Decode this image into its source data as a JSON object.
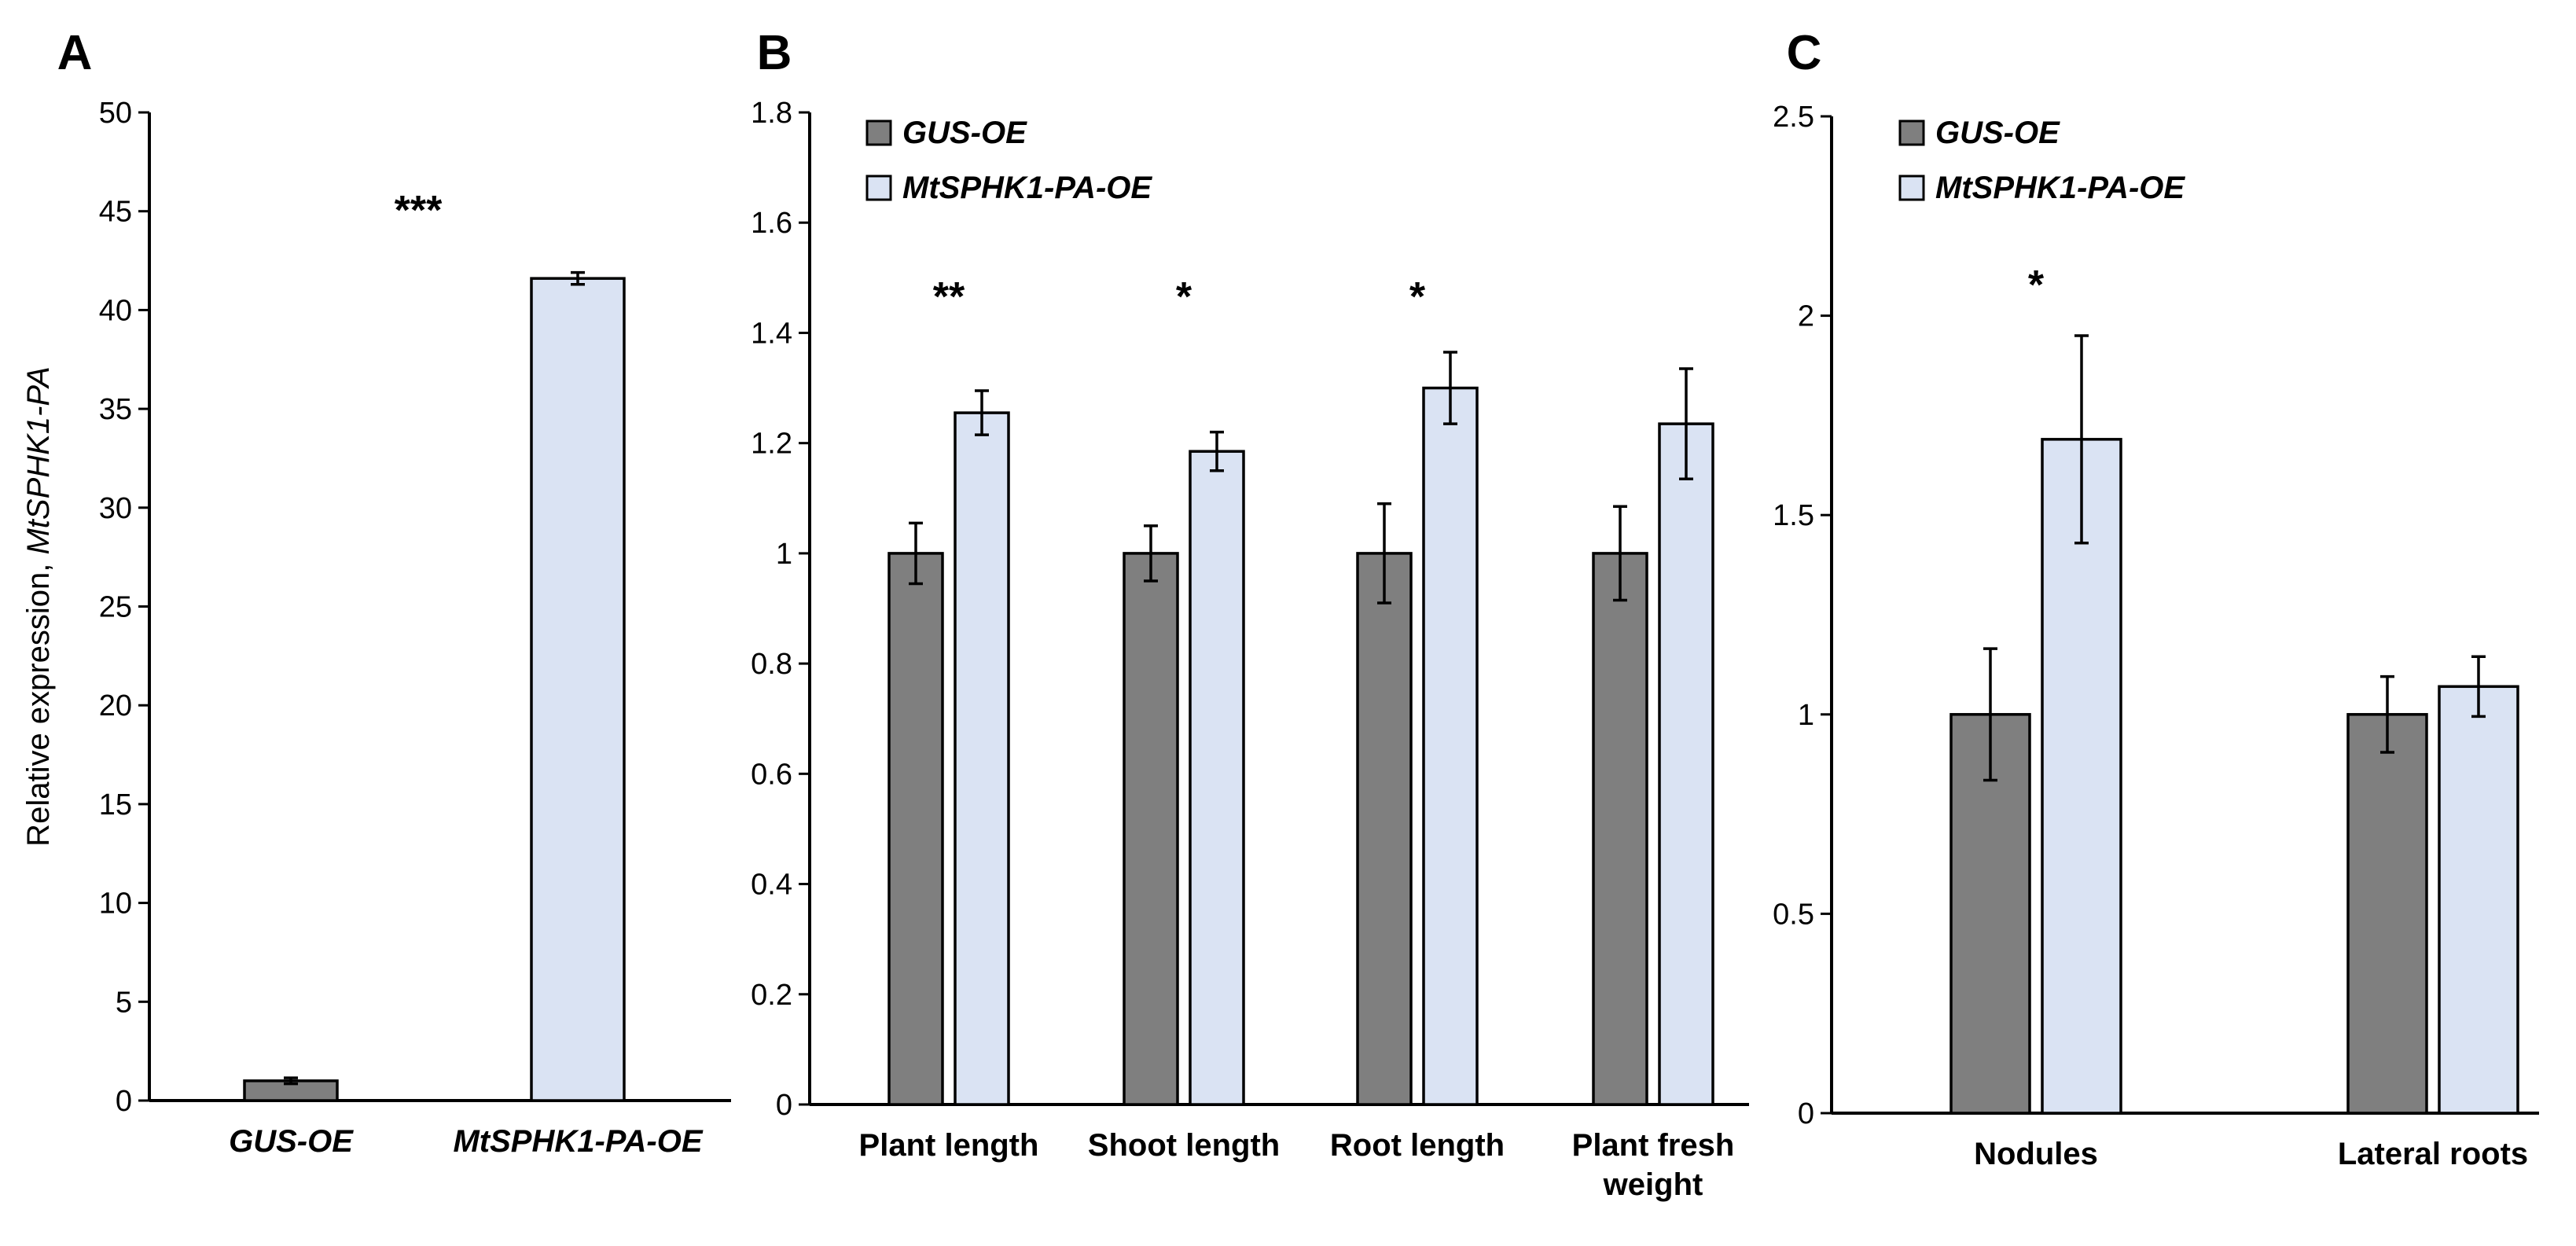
{
  "chart_data": [
    {
      "panel": "A",
      "type": "bar",
      "categories": [
        "GUS-OE",
        "MtSPHK1-PA-OE"
      ],
      "values": [
        1.0,
        41.6
      ],
      "errors": [
        0.15,
        0.3
      ],
      "colors": [
        "#7f7f7f",
        "#dae3f3"
      ],
      "ylabel_plain": "Relative expression, ",
      "ylabel_italic": "MtSPHK1-PA",
      "ylim": [
        0,
        50
      ],
      "yticks": [
        "0",
        "5",
        "10",
        "15",
        "20",
        "25",
        "30",
        "35",
        "40",
        "45",
        "50"
      ],
      "significance": [
        {
          "index": 1,
          "text": "***"
        }
      ],
      "legend": "none",
      "grid": false
    },
    {
      "panel": "B",
      "type": "bar",
      "categories": [
        [
          "Plant length"
        ],
        [
          "Shoot length"
        ],
        [
          "Root length"
        ],
        [
          "Plant fresh",
          "weight"
        ]
      ],
      "series": [
        {
          "name": "GUS-OE",
          "color": "#7f7f7f",
          "values": [
            1.0,
            1.0,
            1.0,
            1.0
          ],
          "errors": [
            0.055,
            0.05,
            0.09,
            0.085
          ]
        },
        {
          "name": "MtSPHK1-PA-OE",
          "color": "#dae3f3",
          "values": [
            1.255,
            1.185,
            1.3,
            1.235
          ],
          "errors": [
            0.04,
            0.035,
            0.065,
            0.1
          ]
        }
      ],
      "ylim": [
        0,
        1.8
      ],
      "yticks": [
        "0",
        "0.2",
        "0.4",
        "0.6",
        "0.8",
        "1",
        "1.2",
        "1.4",
        "1.6",
        "1.8"
      ],
      "significance": [
        {
          "index": 0,
          "text": "**"
        },
        {
          "index": 1,
          "text": "*"
        },
        {
          "index": 2,
          "text": "*"
        }
      ],
      "legend": "top-left",
      "grid": false
    },
    {
      "panel": "C",
      "type": "bar",
      "categories": [
        [
          "Nodules"
        ],
        [
          "Lateral roots"
        ]
      ],
      "series": [
        {
          "name": "GUS-OE",
          "color": "#7f7f7f",
          "values": [
            1.0,
            1.0
          ],
          "errors": [
            0.165,
            0.095
          ]
        },
        {
          "name": "MtSPHK1-PA-OE",
          "color": "#dae3f3",
          "values": [
            1.69,
            1.07
          ],
          "errors": [
            0.26,
            0.075
          ]
        }
      ],
      "ylim": [
        0,
        2.5
      ],
      "yticks": [
        "0",
        "0.5",
        "1",
        "1.5",
        "2",
        "2.5"
      ],
      "significance": [
        {
          "index": 0,
          "text": "*"
        }
      ],
      "legend": "top-left",
      "grid": false
    }
  ]
}
